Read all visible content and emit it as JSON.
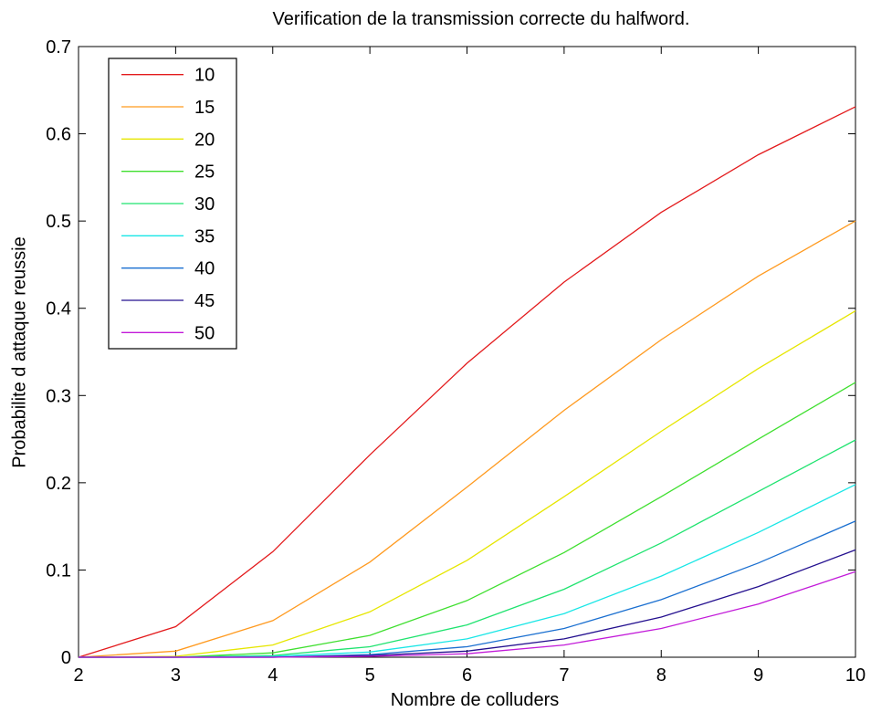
{
  "chart_data": {
    "type": "line",
    "title": "Verification de la transmission correcte du halfword.",
    "xlabel": "Nombre de colluders",
    "ylabel": "Probabilite d attaque reussie",
    "xlim": [
      2,
      10
    ],
    "ylim": [
      0,
      0.7
    ],
    "x": [
      2,
      3,
      4,
      5,
      6,
      7,
      8,
      9,
      10
    ],
    "xticks": [
      "2",
      "3",
      "4",
      "5",
      "6",
      "7",
      "8",
      "9",
      "10"
    ],
    "yticks": [
      "0",
      "0.1",
      "0.2",
      "0.3",
      "0.4",
      "0.5",
      "0.6",
      "0.7"
    ],
    "grid": false,
    "legend_position": "top-left",
    "series": [
      {
        "name": "10",
        "color": "#e31a1c",
        "values": [
          0,
          0.035,
          0.121,
          0.232,
          0.337,
          0.43,
          0.51,
          0.576,
          0.631
        ]
      },
      {
        "name": "15",
        "color": "#ff9a1f",
        "values": [
          0,
          0.007,
          0.042,
          0.109,
          0.195,
          0.283,
          0.364,
          0.437,
          0.5
        ]
      },
      {
        "name": "20",
        "color": "#e6e600",
        "values": [
          0,
          0.001,
          0.014,
          0.052,
          0.111,
          0.184,
          0.259,
          0.331,
          0.397
        ]
      },
      {
        "name": "25",
        "color": "#3fdf2f",
        "values": [
          0,
          0,
          0.005,
          0.025,
          0.065,
          0.12,
          0.184,
          0.25,
          0.315
        ]
      },
      {
        "name": "30",
        "color": "#1fe36f",
        "values": [
          0,
          0,
          0.002,
          0.012,
          0.037,
          0.078,
          0.131,
          0.19,
          0.249
        ]
      },
      {
        "name": "35",
        "color": "#18e6e6",
        "values": [
          0,
          0,
          0.001,
          0.006,
          0.021,
          0.05,
          0.093,
          0.143,
          0.198
        ]
      },
      {
        "name": "40",
        "color": "#1a6fd0",
        "values": [
          0,
          0,
          0,
          0.003,
          0.012,
          0.033,
          0.066,
          0.108,
          0.156
        ]
      },
      {
        "name": "45",
        "color": "#24108f",
        "values": [
          0,
          0,
          0,
          0.002,
          0.007,
          0.021,
          0.046,
          0.081,
          0.123
        ]
      },
      {
        "name": "50",
        "color": "#c21ad9",
        "values": [
          0,
          0,
          0,
          0.001,
          0.004,
          0.014,
          0.033,
          0.061,
          0.098
        ]
      }
    ]
  }
}
